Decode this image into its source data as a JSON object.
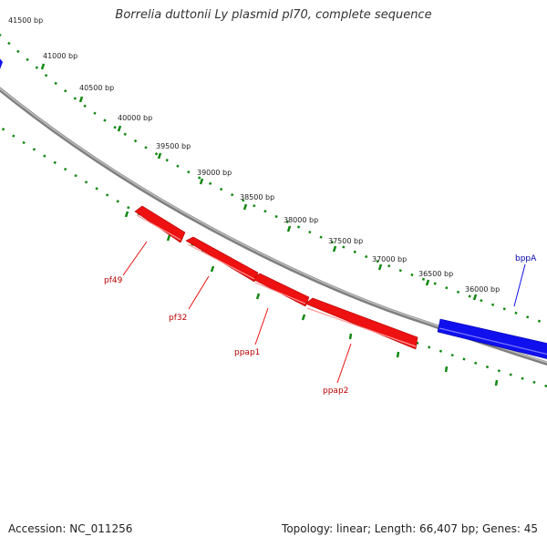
{
  "title": "Borrelia duttonii Ly plasmid pl70, complete sequence",
  "footer": {
    "accession": "Accession: NC_011256",
    "summary": "Topology: linear; Length: 66,407 bp; Genes: 45"
  },
  "colors": {
    "background": "#ffffff",
    "backbone": "#808080",
    "ticks": "#118811",
    "forward_gene": "#1010ee",
    "reverse_gene": "#ee1111",
    "forward_label": "#0000aa",
    "reverse_label": "#bb0000",
    "scale_label": "#222222"
  },
  "scale": {
    "ticks": [
      "41500 bp",
      "41000 bp",
      "40500 bp",
      "40000 bp",
      "39500 bp",
      "39000 bp",
      "38500 bp",
      "38000 bp",
      "37500 bp",
      "37000 bp",
      "36500 bp",
      "36000 bp"
    ]
  },
  "genes": [
    {
      "name": "pf49",
      "strand": "reverse"
    },
    {
      "name": "pf32",
      "strand": "reverse"
    },
    {
      "name": "ppap1",
      "strand": "reverse"
    },
    {
      "name": "ppap2",
      "strand": "reverse"
    },
    {
      "name": "bppA",
      "strand": "forward"
    }
  ]
}
